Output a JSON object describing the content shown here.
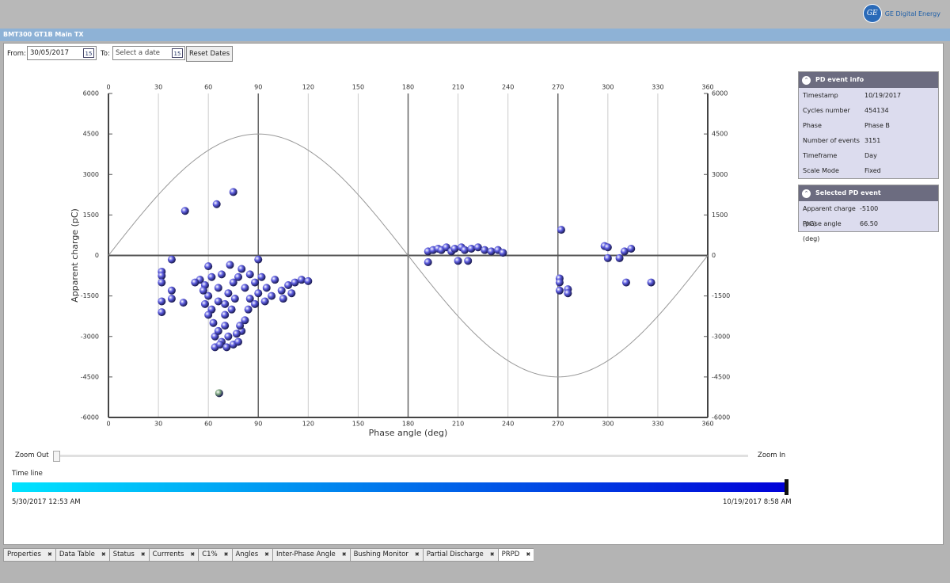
{
  "header": {
    "brand": "GE Digital Energy",
    "title": "BMT300 GT1B Main TX"
  },
  "toolbar": {
    "from_label": "From:",
    "from_value": "30/05/2017",
    "to_label": "To:",
    "to_value": "Select a date",
    "reset": "Reset Dates"
  },
  "chart_data": {
    "type": "scatter",
    "xlabel": "Phase angle (deg)",
    "ylabel": "Apparent charge (pC)",
    "xlim": [
      0,
      360
    ],
    "xticks": [
      0,
      30,
      60,
      90,
      120,
      150,
      180,
      210,
      240,
      270,
      300,
      330,
      360
    ],
    "ylim": [
      -6000,
      6000
    ],
    "yticks": [
      -6000,
      -4500,
      -3000,
      -1500,
      0,
      1500,
      3000,
      4500,
      6000
    ],
    "sine_amplitude": 4500,
    "grid": true,
    "series": [
      {
        "color": "#5c5ce0",
        "x": [
          46,
          65,
          75,
          38,
          32,
          32,
          32,
          32,
          32,
          38,
          38,
          45,
          60,
          73,
          80,
          90,
          55,
          58,
          60,
          62,
          63,
          64,
          64,
          66,
          68,
          70,
          72,
          75,
          78,
          80,
          82,
          70,
          72,
          75,
          78,
          82,
          85,
          88,
          90,
          92,
          95,
          98,
          100,
          104,
          108,
          112,
          116,
          120,
          66,
          68,
          62,
          58,
          60,
          66,
          70,
          74,
          76,
          84,
          88,
          94,
          105,
          110,
          79,
          85,
          57,
          52,
          67,
          71,
          77,
          192,
          192,
          195,
          198,
          200,
          203,
          206,
          208,
          210,
          212,
          214,
          216,
          218,
          222,
          226,
          230,
          234,
          237,
          272,
          271,
          271,
          271,
          276,
          276,
          298,
          300,
          300,
          307,
          310,
          311,
          314,
          326
        ],
        "y": [
          1650,
          1900,
          2350,
          -150,
          -600,
          -750,
          -1000,
          -1700,
          -2100,
          -1300,
          -1600,
          -1750,
          -400,
          -350,
          -500,
          -150,
          -900,
          -1100,
          -1500,
          -2000,
          -2500,
          -3000,
          -3400,
          -2800,
          -3200,
          -2600,
          -3000,
          -3300,
          -3200,
          -2800,
          -2400,
          -1800,
          -1400,
          -1000,
          -800,
          -1200,
          -1600,
          -1000,
          -1400,
          -800,
          -1200,
          -1500,
          -900,
          -1300,
          -1100,
          -1000,
          -900,
          -950,
          -1200,
          -700,
          -800,
          -1800,
          -2200,
          -1700,
          -2200,
          -2000,
          -1600,
          -2000,
          -1800,
          -1700,
          -1600,
          -1400,
          -2600,
          -700,
          -1300,
          -1000,
          -3300,
          -3400,
          -2900,
          150,
          -250,
          200,
          250,
          200,
          300,
          150,
          250,
          -200,
          300,
          200,
          -200,
          250,
          300,
          200,
          150,
          200,
          100,
          950,
          -850,
          -1000,
          -1300,
          -1250,
          -1400,
          350,
          300,
          -100,
          -100,
          150,
          -1000,
          250,
          -1000
        ]
      },
      {
        "color": "#7fa87f",
        "x": [
          66.5
        ],
        "y": [
          -5100
        ]
      }
    ]
  },
  "zoom": {
    "out": "Zoom Out",
    "in": "Zoom In"
  },
  "timeline": {
    "label": "Time line",
    "start": "5/30/2017 12:53 AM",
    "end": "10/19/2017 8:58 AM"
  },
  "pd_info": {
    "title": "PD event info",
    "rows": [
      [
        "Timestamp",
        "10/19/2017"
      ],
      [
        "Cycles number",
        "454134"
      ],
      [
        "Phase",
        "Phase B"
      ],
      [
        "Number of events",
        "3151"
      ],
      [
        "Timeframe",
        "Day"
      ],
      [
        "Scale Mode",
        "Fixed"
      ]
    ]
  },
  "selected_pd": {
    "title": "Selected PD event",
    "rows": [
      [
        "Apparent charge (pC)",
        "-5100"
      ],
      [
        "Phase angle (deg)",
        "66.50"
      ]
    ]
  },
  "tabs": [
    "Properties",
    "Data Table",
    "Status",
    "Currrents",
    "C1%",
    "Angles",
    "Inter-Phase Angle",
    "Bushing Monitor",
    "Partial Discharge",
    "PRPD"
  ]
}
